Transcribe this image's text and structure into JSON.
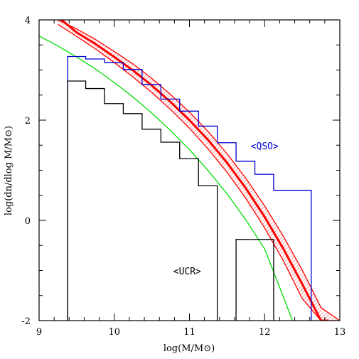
{
  "chart_data": {
    "type": "line",
    "xlabel": "log(M/M⊙)",
    "ylabel": "log(dn/dlog M/M⊙)",
    "xlim": [
      9,
      13
    ],
    "ylim": [
      -2,
      4
    ],
    "x_ticks": [
      9,
      10,
      11,
      12,
      13
    ],
    "y_ticks": [
      -2,
      0,
      2,
      4
    ],
    "grid": false,
    "band": {
      "color": "#ff0000",
      "x": [
        9.25,
        9.5,
        9.75,
        10.0,
        10.25,
        10.5,
        10.75,
        11.0,
        11.25,
        11.5,
        11.75,
        12.0,
        12.25,
        12.5,
        12.75,
        13.0
      ],
      "upper": [
        4.0,
        3.82,
        3.61,
        3.37,
        3.12,
        2.83,
        2.51,
        2.16,
        1.77,
        1.33,
        0.84,
        0.29,
        -0.32,
        -0.99,
        -1.74,
        -2.0
      ],
      "lower": [
        3.91,
        3.67,
        3.42,
        3.15,
        2.86,
        2.55,
        2.21,
        1.84,
        1.42,
        0.96,
        0.44,
        -0.15,
        -0.81,
        -1.56,
        -2.0,
        -2.0
      ],
      "upper_x_end": 12.93,
      "lower_x_end": 12.7
    },
    "series": [
      {
        "color": "#ff0000",
        "style": "thick-line",
        "x": [
          9.3,
          9.5,
          9.75,
          10.0,
          10.25,
          10.5,
          10.75,
          11.0,
          11.25,
          11.5,
          11.75,
          12.0,
          12.25,
          12.5,
          12.75,
          12.85
        ],
        "y": [
          4.0,
          3.75,
          3.52,
          3.26,
          2.99,
          2.69,
          2.36,
          2.0,
          1.6,
          1.15,
          0.64,
          0.07,
          -0.57,
          -1.27,
          -2.0,
          -2.0
        ]
      },
      {
        "color": "#00dd00",
        "style": "line",
        "x": [
          9.0,
          9.25,
          9.5,
          9.75,
          10.0,
          10.25,
          10.5,
          10.75,
          11.0,
          11.25,
          11.5,
          11.75,
          12.0,
          12.25,
          12.37
        ],
        "y": [
          3.68,
          3.48,
          3.26,
          3.02,
          2.75,
          2.46,
          2.14,
          1.79,
          1.41,
          0.99,
          0.53,
          0.01,
          -0.57,
          -1.53,
          -2.0
        ]
      },
      {
        "color": "#0000cc",
        "style": "histogram",
        "edges": [
          9.38,
          9.62,
          9.87,
          10.12,
          10.37,
          10.62,
          10.87,
          11.12,
          11.37,
          11.62,
          11.87,
          12.12,
          12.62
        ],
        "values": [
          3.27,
          3.22,
          3.15,
          3.01,
          2.71,
          2.42,
          2.18,
          1.88,
          1.55,
          1.18,
          0.92,
          0.6
        ],
        "floor": -2
      },
      {
        "color": "#000000",
        "style": "histogram",
        "segments": [
          {
            "edges": [
              9.38,
              9.62,
              9.87,
              10.12,
              10.37,
              10.62,
              10.87,
              11.12,
              11.37
            ],
            "values": [
              2.78,
              2.63,
              2.33,
              2.13,
              1.82,
              1.56,
              1.23,
              0.69
            ],
            "floor": -2
          },
          {
            "edges": [
              11.62,
              12.12
            ],
            "values": [
              -0.38
            ],
            "floor": -2
          }
        ]
      }
    ],
    "annotations": [
      {
        "text": "<QSO>",
        "color": "#0000cc",
        "x": 12.0,
        "y": 1.42
      },
      {
        "text": "<UCR>",
        "color": "#000000",
        "x": 10.97,
        "y": -1.08
      }
    ]
  }
}
